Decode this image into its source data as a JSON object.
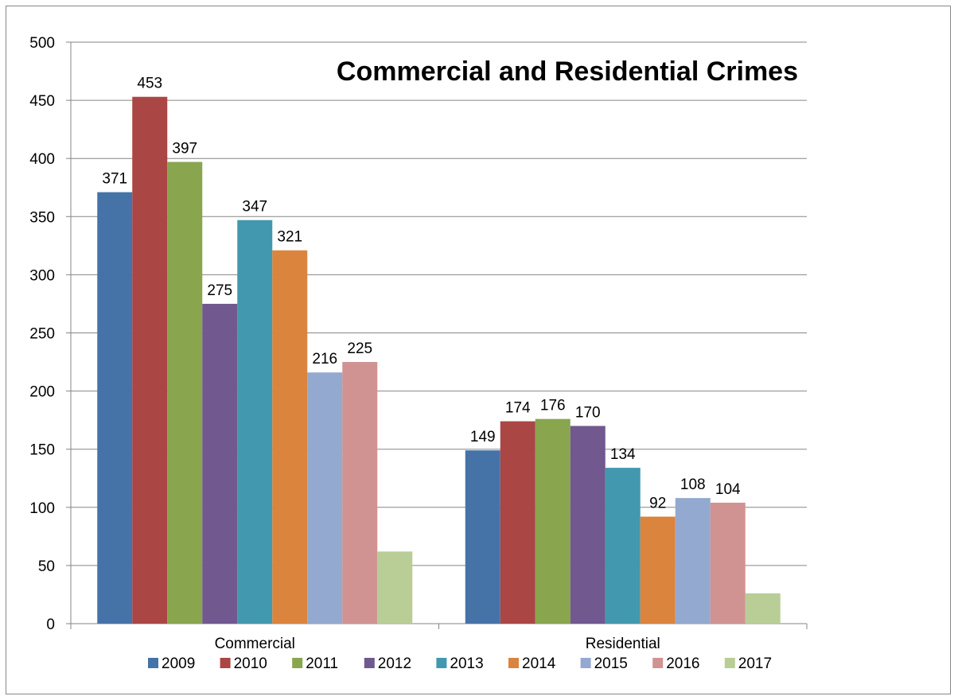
{
  "chart_data": {
    "type": "bar",
    "title": "Commercial and Residential Crimes",
    "xlabel": "",
    "ylabel": "",
    "categories": [
      "Commercial",
      "Residential"
    ],
    "ylim": [
      0,
      500
    ],
    "yticks": [
      0,
      50,
      100,
      150,
      200,
      250,
      300,
      350,
      400,
      450,
      500
    ],
    "grid": true,
    "legend_position": "bottom",
    "series": [
      {
        "name": "2009",
        "values": [
          371,
          149
        ],
        "color": "#4573A7",
        "labels": [
          "371",
          "149"
        ]
      },
      {
        "name": "2010",
        "values": [
          453,
          174
        ],
        "color": "#AA4644",
        "labels": [
          "453",
          "174"
        ]
      },
      {
        "name": "2011",
        "values": [
          397,
          176
        ],
        "color": "#89A54E",
        "labels": [
          "397",
          "176"
        ]
      },
      {
        "name": "2012",
        "values": [
          275,
          170
        ],
        "color": "#71588F",
        "labels": [
          "275",
          "170"
        ]
      },
      {
        "name": "2013",
        "values": [
          347,
          134
        ],
        "color": "#4298AF",
        "labels": [
          "347",
          "134"
        ]
      },
      {
        "name": "2014",
        "values": [
          321,
          92
        ],
        "color": "#DB843D",
        "labels": [
          "321",
          "92"
        ]
      },
      {
        "name": "2015",
        "values": [
          216,
          108
        ],
        "color": "#93A9D0",
        "labels": [
          "216",
          "108"
        ]
      },
      {
        "name": "2016",
        "values": [
          225,
          104
        ],
        "color": "#D09392",
        "labels": [
          "225",
          "104"
        ]
      },
      {
        "name": "2017",
        "values": [
          62,
          26
        ],
        "color": "#B9CD96",
        "labels": [
          "",
          ""
        ]
      }
    ]
  }
}
